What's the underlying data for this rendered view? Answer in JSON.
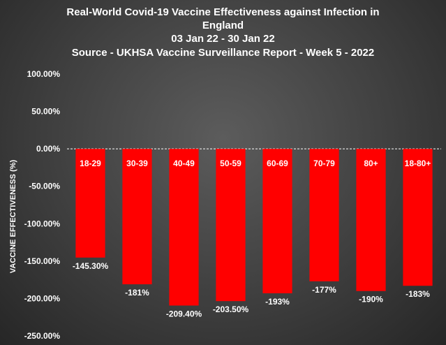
{
  "chart_data": {
    "type": "bar",
    "title_lines": [
      "Real-World Covid-19 Vaccine Effectiveness against Infection in",
      "England",
      "03 Jan 22 - 30 Jan 22",
      "Source - UKHSA Vaccine Surveillance Report - Week 5 - 2022"
    ],
    "xlabel": "",
    "ylabel": "VACCINE EFFECTIVENESS (%)",
    "categories": [
      "18-29",
      "30-39",
      "40-49",
      "50-59",
      "60-69",
      "70-79",
      "80+",
      "18-80+"
    ],
    "values": [
      -145.3,
      -181,
      -209.4,
      -203.5,
      -193,
      -177,
      -190,
      -183
    ],
    "value_labels": [
      "-145.30%",
      "-181%",
      "-209.40%",
      "-203.50%",
      "-193%",
      "-177%",
      "-190%",
      "-183%"
    ],
    "ylim": [
      -250,
      100
    ],
    "yticks": [
      100,
      50,
      0,
      -50,
      -100,
      -150,
      -200,
      -250
    ],
    "ytick_labels": [
      "100.00%",
      "50.00%",
      "0.00%",
      "-50.00%",
      "-100.00%",
      "-150.00%",
      "-200.00%",
      "-250.00%"
    ],
    "bar_color": "#ff0000",
    "zero_line": "dashed",
    "grid": false
  }
}
